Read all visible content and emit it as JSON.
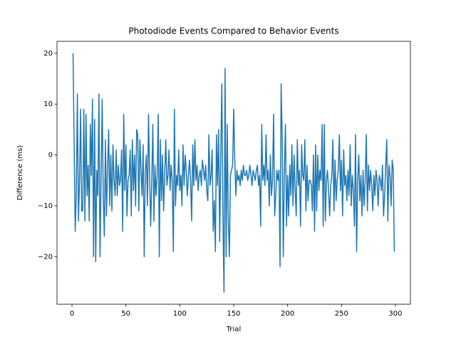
{
  "chart_data": {
    "type": "line",
    "title": "Photodiode Events Compared to Behavior Events",
    "xlabel": "Trial",
    "ylabel": "Difference (ms)",
    "color": "#1f77b4",
    "xlim": [
      -13.9,
      313.9
    ],
    "ylim": [
      -29.35,
      22.35
    ],
    "xticks": [
      0,
      50,
      100,
      150,
      200,
      250,
      300
    ],
    "yticks": [
      {
        "value": -20,
        "label": "−20"
      },
      {
        "value": -10,
        "label": "−10"
      },
      0,
      10,
      20
    ],
    "x": [
      1,
      2,
      3,
      4,
      5,
      6,
      7,
      8,
      9,
      10,
      11,
      12,
      13,
      14,
      15,
      16,
      17,
      18,
      19,
      20,
      21,
      22,
      23,
      24,
      25,
      26,
      27,
      28,
      29,
      30,
      31,
      32,
      33,
      34,
      35,
      36,
      37,
      38,
      39,
      40,
      41,
      42,
      43,
      44,
      45,
      46,
      47,
      48,
      49,
      50,
      51,
      52,
      53,
      54,
      55,
      56,
      57,
      58,
      59,
      60,
      61,
      62,
      63,
      64,
      65,
      66,
      67,
      68,
      69,
      70,
      71,
      72,
      73,
      74,
      75,
      76,
      77,
      78,
      79,
      80,
      81,
      82,
      83,
      84,
      85,
      86,
      87,
      88,
      89,
      90,
      91,
      92,
      93,
      94,
      95,
      96,
      97,
      98,
      99,
      100,
      101,
      102,
      103,
      104,
      105,
      106,
      107,
      108,
      109,
      110,
      111,
      112,
      113,
      114,
      115,
      116,
      117,
      118,
      119,
      120,
      121,
      122,
      123,
      124,
      125,
      126,
      127,
      128,
      129,
      130,
      131,
      132,
      133,
      134,
      135,
      136,
      137,
      138,
      139,
      140,
      141,
      142,
      143,
      144,
      145,
      146,
      147,
      148,
      149,
      150,
      151,
      152,
      153,
      154,
      155,
      156,
      157,
      158,
      159,
      160,
      161,
      162,
      163,
      164,
      165,
      166,
      167,
      168,
      169,
      170,
      171,
      172,
      173,
      174,
      175,
      176,
      177,
      178,
      179,
      180,
      181,
      182,
      183,
      184,
      185,
      186,
      187,
      188,
      189,
      190,
      191,
      192,
      193,
      194,
      195,
      196,
      197,
      198,
      199,
      200,
      201,
      202,
      203,
      204,
      205,
      206,
      207,
      208,
      209,
      210,
      211,
      212,
      213,
      214,
      215,
      216,
      217,
      218,
      219,
      220,
      221,
      222,
      223,
      224,
      225,
      226,
      227,
      228,
      229,
      230,
      231,
      232,
      233,
      234,
      235,
      236,
      237,
      238,
      239,
      240,
      241,
      242,
      243,
      244,
      245,
      246,
      247,
      248,
      249,
      250,
      251,
      252,
      253,
      254,
      255,
      256,
      257,
      258,
      259,
      260,
      261,
      262,
      263,
      264,
      265,
      266,
      267,
      268,
      269,
      270,
      271,
      272,
      273,
      274,
      275,
      276,
      277,
      278,
      279,
      280,
      281,
      282,
      283,
      284,
      285,
      286,
      287,
      288,
      289,
      290,
      291,
      292,
      293,
      294,
      295,
      296,
      297,
      298,
      299
    ],
    "values": [
      20,
      2,
      -15,
      -8,
      12,
      -13,
      -5,
      9,
      -11,
      -11,
      9,
      -13,
      8,
      -8,
      -2,
      -13,
      6,
      -4,
      11,
      -20,
      7,
      -21,
      -3,
      -8,
      12,
      -20,
      -5,
      11,
      -8,
      -16,
      3,
      -12,
      -3,
      5,
      -10,
      0,
      -11,
      2,
      -5,
      -8,
      1,
      -8,
      -2,
      -6,
      -5,
      1,
      -15,
      8,
      -7,
      2,
      -12,
      -5,
      -4,
      1,
      -12,
      3,
      -7,
      0,
      -10,
      5,
      4,
      -11,
      3,
      -3,
      -8,
      2,
      -20,
      -3,
      0,
      -10,
      8,
      -4,
      -14,
      -5,
      6,
      -13,
      -2,
      -8,
      -4,
      8,
      -20,
      3,
      -9,
      0,
      -11,
      -4,
      3,
      -6,
      -4,
      1,
      -7,
      -2,
      -5,
      -19,
      9,
      -10,
      -4,
      -6,
      1,
      -7,
      -4,
      -10,
      2,
      -6,
      0,
      -3,
      -8,
      -4,
      -1,
      -5,
      -13,
      2,
      -6,
      3,
      -5,
      -2,
      -7,
      -4,
      -3,
      -6,
      -1,
      -3,
      -5,
      -2,
      -7,
      -9,
      4,
      -6,
      -4,
      1,
      -15,
      -9,
      -19,
      4,
      -6,
      5,
      -17,
      0,
      14,
      -12,
      -27,
      17,
      -20,
      6,
      -13,
      -20,
      -4,
      -3,
      -2,
      9,
      -1,
      -8,
      -3,
      -5,
      -4,
      -6,
      -3,
      -5,
      -2,
      -4,
      -4,
      -3,
      -5,
      -4,
      -2,
      -4,
      -6,
      -3,
      -4,
      -5,
      -3,
      -2,
      -6,
      -4,
      -14,
      6,
      -5,
      -2,
      -6,
      4,
      -5,
      -3,
      -10,
      0,
      -8,
      -5,
      8,
      -12,
      -8,
      -3,
      -5,
      -3,
      -22,
      14,
      3,
      -20,
      -3,
      6,
      -14,
      -4,
      -12,
      -2,
      -8,
      2,
      -10,
      0,
      -7,
      -12,
      3,
      -6,
      -3,
      -14,
      2,
      -4,
      -5,
      3,
      -11,
      -2,
      -9,
      -5,
      -5,
      -6,
      -11,
      0,
      -15,
      2,
      -11,
      0,
      -7,
      -3,
      -5,
      6,
      -14,
      6,
      -13,
      -5,
      -3,
      -7,
      -12,
      -6,
      -4,
      3,
      -11,
      -1,
      -9,
      -5,
      -3,
      4,
      -7,
      -1,
      -12,
      1,
      -6,
      -4,
      -9,
      -3,
      -8,
      2,
      -10,
      -4,
      -7,
      -14,
      4,
      -19,
      -5,
      0,
      -9,
      -4,
      -12,
      -3,
      -10,
      -5,
      4,
      -11,
      -2,
      -7,
      -3,
      -6,
      -11,
      -4,
      -8,
      -3,
      -5,
      -10,
      -4,
      -5,
      -7,
      -2,
      -12,
      -8,
      -2,
      3,
      -13,
      -2,
      -4,
      -10,
      -1,
      -3,
      -19
    ]
  }
}
